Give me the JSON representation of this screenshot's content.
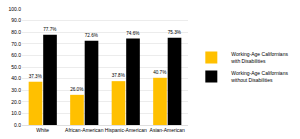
{
  "chart_data": {
    "type": "bar",
    "categories": [
      "White",
      "African-American",
      "Hispanic-American",
      "Asian-American"
    ],
    "series": [
      {
        "name": "Working-Age Californians with Disabilities",
        "color": "#FFC000",
        "values": [
          37.3,
          26.0,
          37.8,
          40.7
        ],
        "value_labels": [
          "37.3%",
          "26.0%",
          "37.8%",
          "40.7%"
        ]
      },
      {
        "name": "Working-Age Californians without Disabilities",
        "color": "#000000",
        "values": [
          77.7,
          72.6,
          74.6,
          75.3
        ],
        "value_labels": [
          "77.7%",
          "72.6%",
          "74.6%",
          "75.3%"
        ]
      }
    ],
    "ylim": [
      0,
      100
    ],
    "yticks": [
      {
        "value": 0,
        "label": "0.0"
      },
      {
        "value": 10,
        "label": "10.0"
      },
      {
        "value": 20,
        "label": "20.0"
      },
      {
        "value": 30,
        "label": "30.0"
      },
      {
        "value": 40,
        "label": "40.0"
      },
      {
        "value": 50,
        "label": "50.0"
      },
      {
        "value": 60,
        "label": "60.0"
      },
      {
        "value": 70,
        "label": "70.0"
      },
      {
        "value": 80,
        "label": "80.0"
      },
      {
        "value": 90,
        "label": "90.0"
      },
      {
        "value": 100,
        "label": "100.0"
      }
    ],
    "grid": true,
    "legend": "right",
    "data_labels": true
  }
}
